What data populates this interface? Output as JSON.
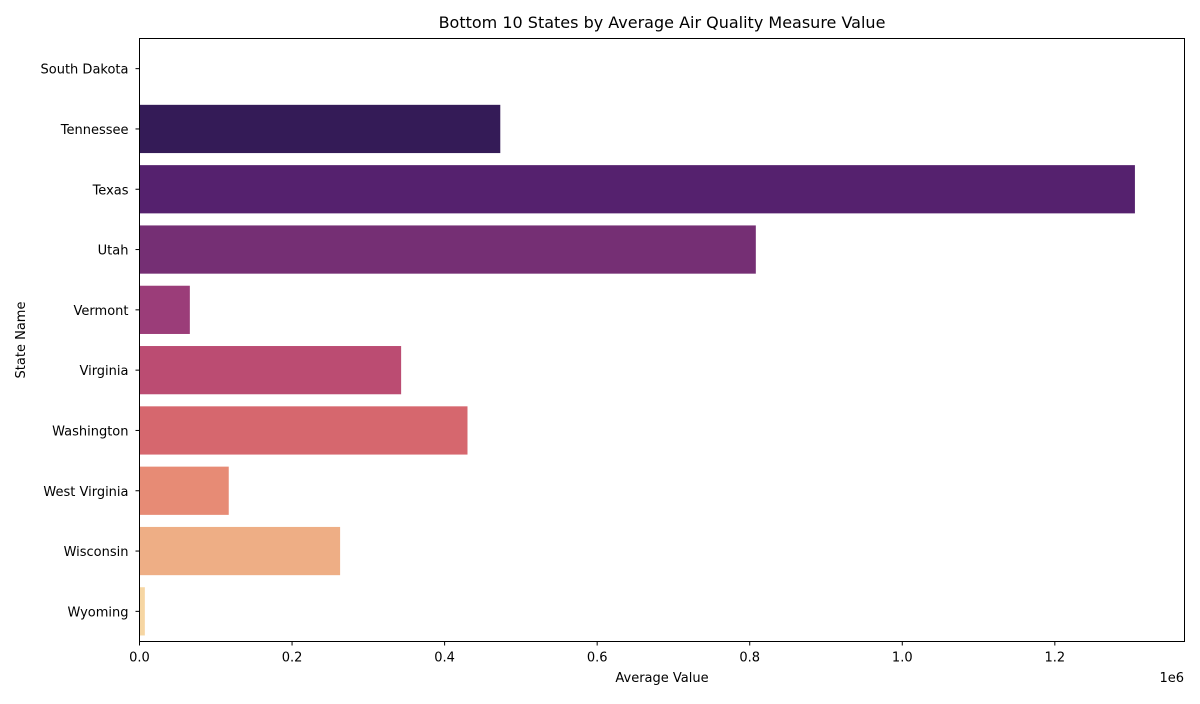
{
  "chart_data": {
    "type": "bar",
    "orientation": "horizontal",
    "title": "Bottom 10 States by Average Air Quality Measure Value",
    "xlabel": "Average Value",
    "ylabel": "State Name",
    "x_offset_label": "1e6",
    "xlim": [
      0,
      1370000
    ],
    "x_ticks": [
      {
        "value": 0,
        "label": "0.0"
      },
      {
        "value": 200000,
        "label": "0.2"
      },
      {
        "value": 400000,
        "label": "0.4"
      },
      {
        "value": 600000,
        "label": "0.6"
      },
      {
        "value": 800000,
        "label": "0.8"
      },
      {
        "value": 1000000,
        "label": "1.0"
      },
      {
        "value": 1200000,
        "label": "1.2"
      }
    ],
    "grid": false,
    "legend": "none",
    "categories": [
      "South Dakota",
      "Tennessee",
      "Texas",
      "Utah",
      "Vermont",
      "Virginia",
      "Washington",
      "West Virginia",
      "Wisconsin",
      "Wyoming"
    ],
    "values": [
      0,
      473000,
      1305000,
      808000,
      66000,
      343000,
      430000,
      117000,
      263000,
      7000
    ],
    "colors": [
      "#000004",
      "#341b57",
      "#55216e",
      "#752f74",
      "#9b3d79",
      "#bb4c72",
      "#d6676e",
      "#e78b75",
      "#eeae85",
      "#f6d6a3"
    ]
  }
}
